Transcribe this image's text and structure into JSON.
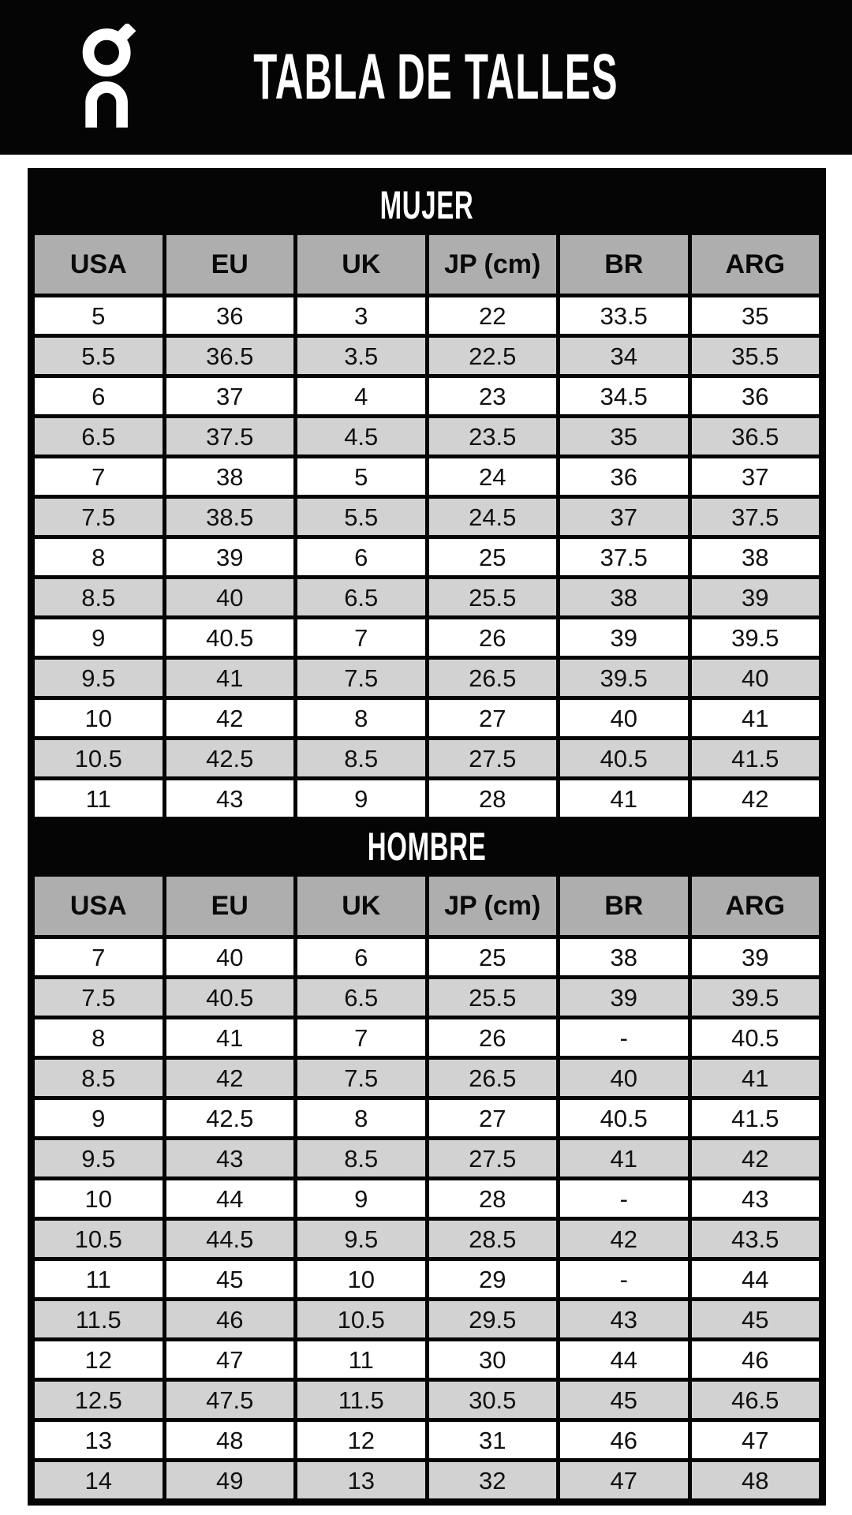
{
  "header": {
    "logo": "on-brand-logo",
    "title": "TABLA DE TALLES"
  },
  "colors": {
    "band_bg": "#050505",
    "band_text": "#ffffff",
    "header_cell_bg": "#aeaeae",
    "row_bg": "#ffffff",
    "row_alt_bg": "#d2d2d2",
    "cell_text": "#111111"
  },
  "tables": [
    {
      "title": "MUJER",
      "columns": [
        "USA",
        "EU",
        "UK",
        "JP (cm)",
        "BR",
        "ARG"
      ],
      "rows": [
        [
          "5",
          "36",
          "3",
          "22",
          "33.5",
          "35"
        ],
        [
          "5.5",
          "36.5",
          "3.5",
          "22.5",
          "34",
          "35.5"
        ],
        [
          "6",
          "37",
          "4",
          "23",
          "34.5",
          "36"
        ],
        [
          "6.5",
          "37.5",
          "4.5",
          "23.5",
          "35",
          "36.5"
        ],
        [
          "7",
          "38",
          "5",
          "24",
          "36",
          "37"
        ],
        [
          "7.5",
          "38.5",
          "5.5",
          "24.5",
          "37",
          "37.5"
        ],
        [
          "8",
          "39",
          "6",
          "25",
          "37.5",
          "38"
        ],
        [
          "8.5",
          "40",
          "6.5",
          "25.5",
          "38",
          "39"
        ],
        [
          "9",
          "40.5",
          "7",
          "26",
          "39",
          "39.5"
        ],
        [
          "9.5",
          "41",
          "7.5",
          "26.5",
          "39.5",
          "40"
        ],
        [
          "10",
          "42",
          "8",
          "27",
          "40",
          "41"
        ],
        [
          "10.5",
          "42.5",
          "8.5",
          "27.5",
          "40.5",
          "41.5"
        ],
        [
          "11",
          "43",
          "9",
          "28",
          "41",
          "42"
        ]
      ]
    },
    {
      "title": "HOMBRE",
      "columns": [
        "USA",
        "EU",
        "UK",
        "JP (cm)",
        "BR",
        "ARG"
      ],
      "rows": [
        [
          "7",
          "40",
          "6",
          "25",
          "38",
          "39"
        ],
        [
          "7.5",
          "40.5",
          "6.5",
          "25.5",
          "39",
          "39.5"
        ],
        [
          "8",
          "41",
          "7",
          "26",
          "-",
          "40.5"
        ],
        [
          "8.5",
          "42",
          "7.5",
          "26.5",
          "40",
          "41"
        ],
        [
          "9",
          "42.5",
          "8",
          "27",
          "40.5",
          "41.5"
        ],
        [
          "9.5",
          "43",
          "8.5",
          "27.5",
          "41",
          "42"
        ],
        [
          "10",
          "44",
          "9",
          "28",
          "-",
          "43"
        ],
        [
          "10.5",
          "44.5",
          "9.5",
          "28.5",
          "42",
          "43.5"
        ],
        [
          "11",
          "45",
          "10",
          "29",
          "-",
          "44"
        ],
        [
          "11.5",
          "46",
          "10.5",
          "29.5",
          "43",
          "45"
        ],
        [
          "12",
          "47",
          "11",
          "30",
          "44",
          "46"
        ],
        [
          "12.5",
          "47.5",
          "11.5",
          "30.5",
          "45",
          "46.5"
        ],
        [
          "13",
          "48",
          "12",
          "31",
          "46",
          "47"
        ],
        [
          "14",
          "49",
          "13",
          "32",
          "47",
          "48"
        ]
      ]
    }
  ]
}
